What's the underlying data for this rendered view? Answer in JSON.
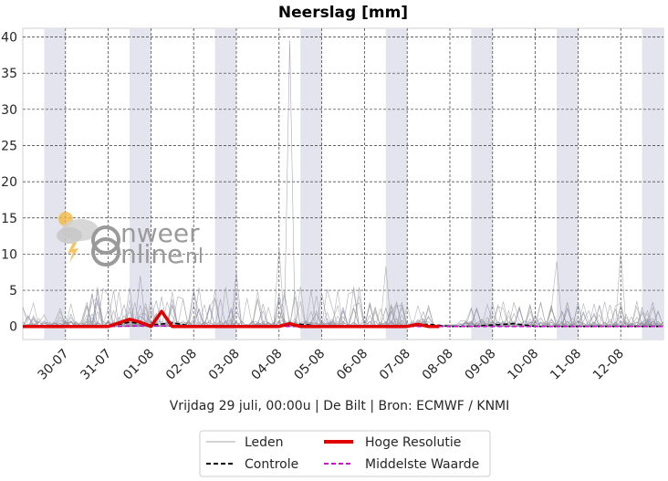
{
  "chart_data": {
    "type": "line",
    "title": "Neerslag [mm]",
    "subtitle": "Vrijdag 29 juli, 00:00u  | De Bilt | Bron: ECMWF / KNMI",
    "x_tick_labels": [
      "30-07",
      "31-07",
      "01-08",
      "02-08",
      "03-08",
      "04-08",
      "05-08",
      "06-08",
      "07-08",
      "08-08",
      "09-08",
      "10-08",
      "11-08",
      "12-08"
    ],
    "y_ticks": [
      0,
      5,
      10,
      15,
      20,
      25,
      30,
      35,
      40
    ],
    "ylim": [
      -1.8,
      41.2
    ],
    "x_unit": "days since 29-07 00:00",
    "xlim": [
      0,
      15
    ],
    "grid": true,
    "legend_placement": "bottom-center",
    "legend": [
      {
        "label": "Leden",
        "color": "#bbbbbb",
        "style": "solid-thin"
      },
      {
        "label": "Hoge Resolutie",
        "color": "#e00000",
        "style": "solid-thick"
      },
      {
        "label": "Controle",
        "color": "#000000",
        "style": "dashed"
      },
      {
        "label": "Middelste Waarde",
        "color": "#e000e0",
        "style": "dashed"
      }
    ],
    "shaded_day_bands": [
      [
        0.5,
        1.0
      ],
      [
        2.5,
        3.0
      ],
      [
        4.5,
        5.0
      ],
      [
        6.5,
        7.0
      ],
      [
        8.5,
        9.0
      ],
      [
        10.5,
        11.0
      ],
      [
        12.5,
        13.0
      ],
      [
        14.5,
        15.0
      ]
    ],
    "series": [
      {
        "name": "Hoge Resolutie",
        "color": "#e00000",
        "x": [
          0,
          0.5,
          1.0,
          1.5,
          2.0,
          2.25,
          2.5,
          2.75,
          3.0,
          3.25,
          3.5,
          4.0,
          4.5,
          5.0,
          5.5,
          6.0,
          6.25,
          6.5,
          7.0,
          7.5,
          8.0,
          8.5,
          9.0,
          9.25,
          9.5,
          9.75
        ],
        "y": [
          0,
          0,
          0,
          0,
          0,
          0.5,
          1.0,
          0.6,
          0,
          2.1,
          0,
          0,
          0,
          0,
          0,
          0,
          0.4,
          0,
          0,
          0,
          0,
          0,
          0,
          0.3,
          0,
          0
        ]
      },
      {
        "name": "Controle",
        "color": "#000000",
        "x": [
          0,
          1,
          2,
          2.5,
          3,
          3.5,
          4,
          5,
          6,
          6.5,
          7,
          8,
          9,
          9.5,
          10,
          10.5,
          11,
          11.5,
          12,
          12.5,
          13,
          13.5,
          14,
          14.5,
          15
        ],
        "y": [
          0,
          0,
          0,
          0.6,
          0.2,
          0.5,
          0,
          0,
          0,
          0.3,
          0,
          0,
          0,
          0.3,
          0,
          0,
          0.2,
          0.4,
          0,
          0,
          0,
          0,
          0,
          0,
          0
        ]
      },
      {
        "name": "Middelste Waarde",
        "color": "#e000e0",
        "x": [
          0,
          1,
          2,
          3,
          4,
          5,
          6,
          7,
          8,
          9,
          10,
          11,
          12,
          13,
          14,
          15
        ],
        "y": [
          0,
          0,
          0,
          0.1,
          0,
          0,
          0,
          0,
          0,
          0,
          0,
          0,
          0,
          0,
          0,
          0
        ]
      }
    ],
    "members_note": "ensemble members, thin grey lines",
    "member_peak": 39.5
  },
  "watermark": {
    "text_part1": "nweer",
    "text_part2": "nline",
    "text_suffix": ".nl",
    "logo_icon": "weather-cloud-sun-icon"
  }
}
